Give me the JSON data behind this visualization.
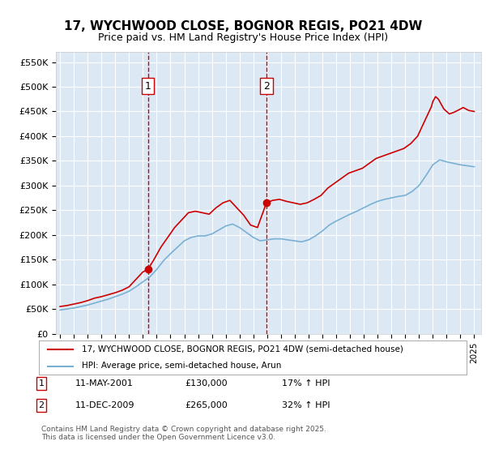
{
  "title": "17, WYCHWOOD CLOSE, BOGNOR REGIS, PO21 4DW",
  "subtitle": "Price paid vs. HM Land Registry's House Price Index (HPI)",
  "ylabel_ticks": [
    "£0",
    "£50K",
    "£100K",
    "£150K",
    "£200K",
    "£250K",
    "£300K",
    "£350K",
    "£400K",
    "£450K",
    "£500K",
    "£550K"
  ],
  "ytick_values": [
    0,
    50000,
    100000,
    150000,
    200000,
    250000,
    300000,
    350000,
    400000,
    450000,
    500000,
    550000
  ],
  "ylim": [
    0,
    570000
  ],
  "xlim_start": 1995.0,
  "xlim_end": 2025.5,
  "background_color": "#dce9f5",
  "plot_bg_color": "#dce9f5",
  "fig_bg_color": "#ffffff",
  "red_line_color": "#cc0000",
  "blue_line_color": "#7ab0d4",
  "vline_color": "#cc0000",
  "legend1": "17, WYCHWOOD CLOSE, BOGNOR REGIS, PO21 4DW (semi-detached house)",
  "legend2": "HPI: Average price, semi-detached house, Arun",
  "marker1_year": 2001.36,
  "marker1_label": "1",
  "marker1_date": "11-MAY-2001",
  "marker1_price": "£130,000",
  "marker1_hpi": "17% ↑ HPI",
  "marker1_value": 130000,
  "marker2_year": 2009.95,
  "marker2_label": "2",
  "marker2_date": "11-DEC-2009",
  "marker2_price": "£265,000",
  "marker2_hpi": "32% ↑ HPI",
  "marker2_value": 265000,
  "footer": "Contains HM Land Registry data © Crown copyright and database right 2025.\nThis data is licensed under the Open Government Licence v3.0.",
  "red_data_x": [
    1995.0,
    1995.5,
    1996.0,
    1996.5,
    1997.0,
    1997.5,
    1998.0,
    1998.5,
    1999.0,
    1999.5,
    2000.0,
    2000.5,
    2001.0,
    2001.36,
    2001.8,
    2002.3,
    2002.8,
    2003.3,
    2003.8,
    2004.3,
    2004.8,
    2005.3,
    2005.8,
    2006.3,
    2006.8,
    2007.3,
    2007.8,
    2008.3,
    2008.8,
    2009.3,
    2009.95,
    2010.4,
    2010.9,
    2011.4,
    2011.9,
    2012.4,
    2012.9,
    2013.4,
    2013.9,
    2014.4,
    2014.9,
    2015.4,
    2015.9,
    2016.4,
    2016.9,
    2017.4,
    2017.9,
    2018.4,
    2018.9,
    2019.4,
    2019.9,
    2020.4,
    2020.9,
    2021.4,
    2021.9,
    2022.0,
    2022.2,
    2022.4,
    2022.6,
    2022.8,
    2023.0,
    2023.2,
    2023.5,
    2023.8,
    2024.0,
    2024.2,
    2024.4,
    2024.6,
    2025.0
  ],
  "red_data_y": [
    55000,
    57000,
    60000,
    63000,
    67000,
    72000,
    75000,
    79000,
    83000,
    88000,
    95000,
    110000,
    125000,
    130000,
    150000,
    175000,
    195000,
    215000,
    230000,
    245000,
    248000,
    245000,
    242000,
    255000,
    265000,
    270000,
    255000,
    240000,
    220000,
    215000,
    265000,
    270000,
    272000,
    268000,
    265000,
    262000,
    265000,
    272000,
    280000,
    295000,
    305000,
    315000,
    325000,
    330000,
    335000,
    345000,
    355000,
    360000,
    365000,
    370000,
    375000,
    385000,
    400000,
    430000,
    460000,
    470000,
    480000,
    475000,
    465000,
    455000,
    450000,
    445000,
    448000,
    452000,
    455000,
    458000,
    455000,
    452000,
    450000
  ],
  "blue_data_x": [
    1995.0,
    1995.5,
    1996.0,
    1996.5,
    1997.0,
    1997.5,
    1998.0,
    1998.5,
    1999.0,
    1999.5,
    2000.0,
    2000.5,
    2001.0,
    2001.5,
    2002.0,
    2002.5,
    2003.0,
    2003.5,
    2004.0,
    2004.5,
    2005.0,
    2005.5,
    2006.0,
    2006.5,
    2007.0,
    2007.5,
    2008.0,
    2008.5,
    2009.0,
    2009.5,
    2010.0,
    2010.5,
    2011.0,
    2011.5,
    2012.0,
    2012.5,
    2013.0,
    2013.5,
    2014.0,
    2014.5,
    2015.0,
    2015.5,
    2016.0,
    2016.5,
    2017.0,
    2017.5,
    2018.0,
    2018.5,
    2019.0,
    2019.5,
    2020.0,
    2020.5,
    2021.0,
    2021.5,
    2022.0,
    2022.5,
    2023.0,
    2023.5,
    2024.0,
    2024.5,
    2025.0
  ],
  "blue_data_y": [
    48000,
    50000,
    52000,
    55000,
    58000,
    62000,
    66000,
    70000,
    75000,
    80000,
    86000,
    95000,
    105000,
    115000,
    130000,
    148000,
    162000,
    175000,
    188000,
    195000,
    198000,
    198000,
    202000,
    210000,
    218000,
    222000,
    215000,
    205000,
    195000,
    188000,
    190000,
    192000,
    192000,
    190000,
    188000,
    186000,
    190000,
    198000,
    208000,
    220000,
    228000,
    235000,
    242000,
    248000,
    255000,
    262000,
    268000,
    272000,
    275000,
    278000,
    280000,
    288000,
    300000,
    320000,
    342000,
    352000,
    348000,
    345000,
    342000,
    340000,
    338000
  ],
  "xticks": [
    1995,
    1996,
    1997,
    1998,
    1999,
    2000,
    2001,
    2002,
    2003,
    2004,
    2005,
    2006,
    2007,
    2008,
    2009,
    2010,
    2011,
    2012,
    2013,
    2014,
    2015,
    2016,
    2017,
    2018,
    2019,
    2020,
    2021,
    2022,
    2023,
    2024,
    2025
  ]
}
